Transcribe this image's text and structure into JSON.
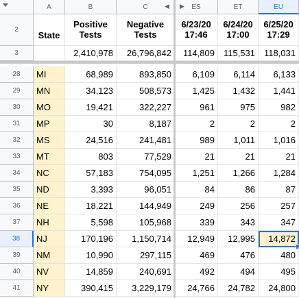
{
  "columns": [
    "A",
    "B",
    "C",
    "ES",
    "ET",
    "EU"
  ],
  "nav": {
    "left_arrow": "◀",
    "right_arrow": "▶"
  },
  "header_rows": [
    {
      "row": "2",
      "state": "State",
      "b": "Positive\nTests",
      "c": "Negative\nTests",
      "es": "6/23/20\n17:46",
      "et": "6/24/20\n17:00",
      "eu": "6/25/20\n17:29"
    },
    {
      "row": "3",
      "state": "",
      "b": "2,410,978",
      "c": "26,796,842",
      "es": "114,809",
      "et": "115,531",
      "eu": "118,031"
    }
  ],
  "rows": [
    {
      "row": "28",
      "state": "MI",
      "b": "68,989",
      "c": "893,850",
      "es": "6,109",
      "et": "6,114",
      "eu": "6,133"
    },
    {
      "row": "29",
      "state": "MN",
      "b": "34,123",
      "c": "508,573",
      "es": "1,425",
      "et": "1,432",
      "eu": "1,441"
    },
    {
      "row": "30",
      "state": "MO",
      "b": "19,421",
      "c": "322,227",
      "es": "961",
      "et": "975",
      "eu": "982"
    },
    {
      "row": "31",
      "state": "MP",
      "b": "30",
      "c": "8,187",
      "es": "2",
      "et": "2",
      "eu": "2"
    },
    {
      "row": "32",
      "state": "MS",
      "b": "24,516",
      "c": "241,481",
      "es": "989",
      "et": "1,011",
      "eu": "1,016"
    },
    {
      "row": "33",
      "state": "MT",
      "b": "803",
      "c": "77,529",
      "es": "21",
      "et": "21",
      "eu": "21"
    },
    {
      "row": "34",
      "state": "NC",
      "b": "57,183",
      "c": "754,095",
      "es": "1,251",
      "et": "1,266",
      "eu": "1,284"
    },
    {
      "row": "35",
      "state": "ND",
      "b": "3,393",
      "c": "96,051",
      "es": "84",
      "et": "86",
      "eu": "87"
    },
    {
      "row": "36",
      "state": "NE",
      "b": "18,221",
      "c": "144,949",
      "es": "249",
      "et": "256",
      "eu": "257"
    },
    {
      "row": "37",
      "state": "NH",
      "b": "5,598",
      "c": "105,968",
      "es": "339",
      "et": "343",
      "eu": "347"
    },
    {
      "row": "38",
      "state": "NJ",
      "b": "170,196",
      "c": "1,150,714",
      "es": "12,949",
      "et": "12,995",
      "eu": "14,872"
    },
    {
      "row": "39",
      "state": "NM",
      "b": "10,990",
      "c": "297,115",
      "es": "469",
      "et": "476",
      "eu": "480"
    },
    {
      "row": "40",
      "state": "NV",
      "b": "14,859",
      "c": "240,691",
      "es": "492",
      "et": "494",
      "eu": "495"
    },
    {
      "row": "41",
      "state": "NY",
      "b": "390,415",
      "c": "3,229,179",
      "es": "24,766",
      "et": "24,782",
      "eu": "24,800"
    }
  ],
  "selection": {
    "row": "38",
    "column": "EU"
  },
  "colors": {
    "selection": "#1a73e8",
    "state_fill": "#fff2cc",
    "header_bg": "#f8f9fa"
  }
}
